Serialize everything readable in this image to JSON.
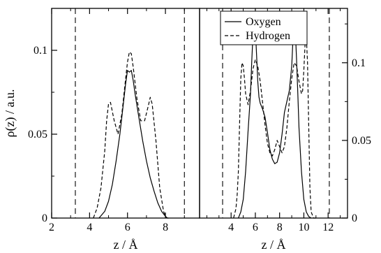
{
  "chart_data": [
    {
      "type": "line",
      "panel": "left",
      "xlabel": "z / Å",
      "ylabel": "ρ(z)  / a.u.",
      "xlim": [
        2,
        9.8
      ],
      "ylim": [
        0,
        0.125
      ],
      "xticks": [
        2,
        4,
        6,
        8
      ],
      "xtick_labels": [
        "2",
        "4",
        "6",
        "8"
      ],
      "yticks": [
        0,
        0.05,
        0.1
      ],
      "ytick_labels": [
        "0",
        "0.05",
        "0.1"
      ],
      "vlines": [
        3.25,
        9.0
      ],
      "series": [
        {
          "name": "Oxygen",
          "style": "solid",
          "x": [
            4.5,
            4.8,
            5.0,
            5.2,
            5.4,
            5.6,
            5.8,
            5.9,
            6.0,
            6.1,
            6.2,
            6.3,
            6.4,
            6.6,
            6.8,
            7.0,
            7.2,
            7.4,
            7.6,
            7.8,
            8.0,
            8.1
          ],
          "y": [
            0.0,
            0.004,
            0.01,
            0.02,
            0.034,
            0.05,
            0.07,
            0.08,
            0.088,
            0.087,
            0.088,
            0.082,
            0.074,
            0.06,
            0.046,
            0.034,
            0.024,
            0.016,
            0.009,
            0.004,
            0.001,
            0.0
          ]
        },
        {
          "name": "Hydrogen",
          "style": "dashed",
          "x": [
            4.2,
            4.4,
            4.6,
            4.8,
            4.9,
            5.0,
            5.1,
            5.3,
            5.5,
            5.7,
            5.9,
            6.0,
            6.1,
            6.2,
            6.3,
            6.5,
            6.7,
            6.9,
            7.1,
            7.2,
            7.3,
            7.5,
            7.7,
            7.9,
            8.0,
            8.1,
            8.2
          ],
          "y": [
            0.0,
            0.006,
            0.018,
            0.04,
            0.058,
            0.068,
            0.069,
            0.058,
            0.05,
            0.062,
            0.083,
            0.093,
            0.099,
            0.098,
            0.09,
            0.071,
            0.058,
            0.058,
            0.067,
            0.072,
            0.068,
            0.046,
            0.018,
            0.004,
            0.001,
            0.0,
            0.0
          ]
        }
      ]
    },
    {
      "type": "line",
      "panel": "right",
      "xlabel": "z / Å",
      "xlim": [
        1.4,
        13.6
      ],
      "ylim": [
        0,
        0.135
      ],
      "xticks": [
        4,
        6,
        8,
        10,
        12
      ],
      "xtick_labels": [
        "4",
        "6",
        "8",
        "10",
        "12"
      ],
      "yticks": [
        0,
        0.05,
        0.1
      ],
      "ytick_labels": [
        "0",
        "0.05",
        "0.1"
      ],
      "vlines": [
        3.3,
        12.1
      ],
      "legend": {
        "position": "top-center",
        "entries": [
          "Oxygen",
          "Hydrogen"
        ]
      },
      "series": [
        {
          "name": "Oxygen",
          "style": "solid",
          "x": [
            4.6,
            4.8,
            5.0,
            5.2,
            5.4,
            5.6,
            5.7,
            5.8,
            5.9,
            6.0,
            6.1,
            6.2,
            6.3,
            6.4,
            6.6,
            6.8,
            7.0,
            7.2,
            7.4,
            7.6,
            7.8,
            8.0,
            8.2,
            8.4,
            8.6,
            8.8,
            9.0,
            9.1,
            9.2,
            9.3,
            9.4,
            9.5,
            9.6,
            9.8,
            10.0,
            10.2,
            10.4,
            10.6
          ],
          "y": [
            0.0,
            0.004,
            0.012,
            0.03,
            0.056,
            0.08,
            0.1,
            0.118,
            0.126,
            0.122,
            0.105,
            0.088,
            0.078,
            0.074,
            0.07,
            0.065,
            0.055,
            0.044,
            0.038,
            0.035,
            0.036,
            0.042,
            0.054,
            0.068,
            0.075,
            0.082,
            0.098,
            0.115,
            0.126,
            0.12,
            0.102,
            0.08,
            0.058,
            0.03,
            0.012,
            0.004,
            0.001,
            0.0
          ]
        },
        {
          "name": "Hydrogen",
          "style": "dashed",
          "x": [
            4.2,
            4.4,
            4.5,
            4.6,
            4.7,
            4.8,
            4.9,
            5.0,
            5.1,
            5.2,
            5.4,
            5.6,
            5.8,
            6.0,
            6.2,
            6.4,
            6.6,
            6.8,
            7.0,
            7.2,
            7.4,
            7.6,
            7.8,
            8.0,
            8.2,
            8.4,
            8.6,
            8.8,
            9.0,
            9.2,
            9.4,
            9.6,
            9.8,
            9.9,
            10.0,
            10.1,
            10.2,
            10.3,
            10.4,
            10.5,
            10.6,
            10.8,
            11.0
          ],
          "y": [
            0.0,
            0.006,
            0.015,
            0.03,
            0.06,
            0.09,
            0.1,
            0.098,
            0.09,
            0.08,
            0.073,
            0.082,
            0.096,
            0.102,
            0.098,
            0.088,
            0.074,
            0.06,
            0.048,
            0.042,
            0.04,
            0.044,
            0.05,
            0.046,
            0.042,
            0.046,
            0.058,
            0.075,
            0.09,
            0.1,
            0.098,
            0.088,
            0.08,
            0.082,
            0.095,
            0.112,
            0.118,
            0.1,
            0.06,
            0.02,
            0.004,
            0.0,
            0.0
          ]
        }
      ]
    }
  ]
}
